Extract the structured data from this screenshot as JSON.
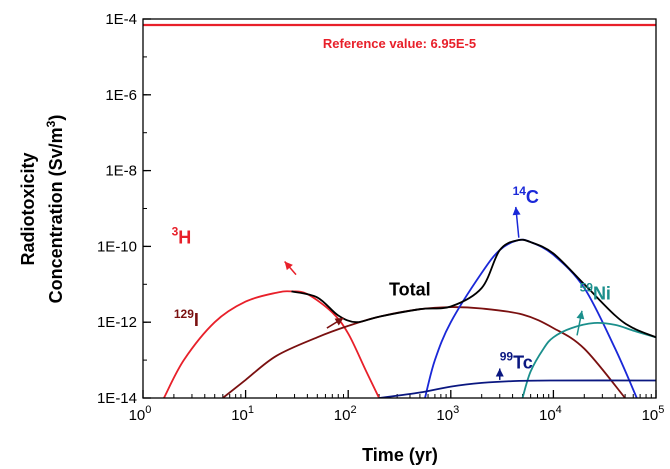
{
  "chart_data": {
    "type": "line",
    "title": "",
    "xlabel": "Time (yr)",
    "ylabel_line1": "Radiotoxicity",
    "ylabel_line2": "Concentration (Sv/m",
    "ylabel_sup": "3",
    "ylabel_close": ")",
    "xscale": "log",
    "yscale": "log",
    "xlim": [
      1,
      100000
    ],
    "ylim": [
      1e-14,
      0.0001
    ],
    "grid": false,
    "x_ticks": [
      {
        "v": 1,
        "base": "10",
        "exp": "0"
      },
      {
        "v": 10,
        "base": "10",
        "exp": "1"
      },
      {
        "v": 100,
        "base": "10",
        "exp": "2"
      },
      {
        "v": 1000,
        "base": "10",
        "exp": "3"
      },
      {
        "v": 10000,
        "base": "10",
        "exp": "4"
      },
      {
        "v": 100000,
        "base": "10",
        "exp": "5"
      }
    ],
    "y_ticks": [
      {
        "v": 1e-14,
        "label": "1E-14"
      },
      {
        "v": 1e-12,
        "label": "1E-12"
      },
      {
        "v": 1e-10,
        "label": "1E-10"
      },
      {
        "v": 1e-08,
        "label": "1E-8"
      },
      {
        "v": 1e-06,
        "label": "1E-6"
      },
      {
        "v": 0.0001,
        "label": "1E-4"
      }
    ],
    "reference": {
      "value": 6.95e-05,
      "text": "Reference value: 6.95E-5",
      "color": "#e8202a"
    },
    "series": [
      {
        "name": "3H",
        "color": "#e8202a",
        "points": [
          [
            1.6,
            1e-14
          ],
          [
            2.5,
            1e-13
          ],
          [
            5,
            1e-12
          ],
          [
            10,
            3.5e-12
          ],
          [
            20,
            6e-12
          ],
          [
            28,
            6.5e-12
          ],
          [
            40,
            5.5e-12
          ],
          [
            70,
            1.8e-12
          ],
          [
            100,
            5e-13
          ],
          [
            150,
            5e-14
          ],
          [
            200,
            1e-14
          ]
        ]
      },
      {
        "name": "129I",
        "color": "#7a1010",
        "points": [
          [
            6,
            1e-14
          ],
          [
            10,
            3e-14
          ],
          [
            20,
            1.3e-13
          ],
          [
            50,
            4e-13
          ],
          [
            100,
            8e-13
          ],
          [
            200,
            1.4e-12
          ],
          [
            500,
            2.2e-12
          ],
          [
            1000,
            2.5e-12
          ],
          [
            2000,
            2.3e-12
          ],
          [
            5000,
            1.6e-12
          ],
          [
            10000,
            7e-13
          ],
          [
            20000,
            2e-13
          ],
          [
            50000,
            1e-14
          ]
        ]
      },
      {
        "name": "14C",
        "color": "#1a28d8",
        "points": [
          [
            560,
            1e-14
          ],
          [
            700,
            1e-13
          ],
          [
            1000,
            1e-12
          ],
          [
            2000,
            2e-11
          ],
          [
            3000,
            8e-11
          ],
          [
            4500,
            1.45e-10
          ],
          [
            6000,
            1.3e-10
          ],
          [
            10000,
            6e-11
          ],
          [
            20000,
            8e-12
          ],
          [
            40000,
            2e-13
          ],
          [
            65000,
            1e-14
          ]
        ]
      },
      {
        "name": "59Ni",
        "color": "#1b8f8c",
        "points": [
          [
            5000,
            1e-14
          ],
          [
            6000,
            5e-14
          ],
          [
            8000,
            2e-13
          ],
          [
            10000,
            4e-13
          ],
          [
            15000,
            7e-13
          ],
          [
            25000,
            9.5e-13
          ],
          [
            40000,
            8.5e-13
          ],
          [
            60000,
            6e-13
          ],
          [
            100000,
            4e-13
          ]
        ]
      },
      {
        "name": "99Tc",
        "color": "#0a1780",
        "points": [
          [
            200,
            1e-14
          ],
          [
            500,
            1.4e-14
          ],
          [
            1000,
            2e-14
          ],
          [
            2000,
            2.5e-14
          ],
          [
            4000,
            2.8e-14
          ],
          [
            10000,
            2.9e-14
          ],
          [
            100000,
            2.9e-14
          ]
        ]
      },
      {
        "name": "Total",
        "color": "#000000",
        "points": [
          [
            28,
            6.5e-12
          ],
          [
            50,
            4.5e-12
          ],
          [
            80,
            1.5e-12
          ],
          [
            120,
            1e-12
          ],
          [
            200,
            1.4e-12
          ],
          [
            500,
            2.2e-12
          ],
          [
            1000,
            2.6e-12
          ],
          [
            2000,
            8e-12
          ],
          [
            3000,
            8e-11
          ],
          [
            4500,
            1.45e-10
          ],
          [
            6000,
            1.3e-10
          ],
          [
            10000,
            6.5e-11
          ],
          [
            20000,
            1e-11
          ],
          [
            40000,
            1.5e-12
          ],
          [
            60000,
            7e-13
          ],
          [
            100000,
            4e-13
          ]
        ]
      }
    ],
    "annotations": [
      {
        "name": "h3",
        "text": "H",
        "sup": "3",
        "color": "#e8202a",
        "x": 1.9,
        "y": 1.2e-10,
        "arrow_from": [
          31,
          1.8e-11
        ],
        "arrow_to": [
          24,
          4e-11
        ]
      },
      {
        "name": "i129",
        "text": "I",
        "sup": "129",
        "color": "#7a1010",
        "x": 2,
        "y": 8e-13,
        "arrow_from": [
          62,
          7e-13
        ],
        "arrow_to": [
          90,
          1.3e-12
        ]
      },
      {
        "name": "c14",
        "text": "C",
        "sup": "14",
        "color": "#1a28d8",
        "x": 4000,
        "y": 1.4e-09,
        "arrow_from": [
          4600,
          1.7e-10
        ],
        "arrow_to": [
          4300,
          1.1e-09
        ]
      },
      {
        "name": "ni59",
        "text": "Ni",
        "sup": "59",
        "color": "#1b8f8c",
        "x": 18000,
        "y": 4e-12,
        "arrow_from": [
          17000,
          4.5e-13
        ],
        "arrow_to": [
          19000,
          2e-12
        ]
      },
      {
        "name": "tc99",
        "text": "Tc",
        "sup": "99",
        "color": "#0a1780",
        "x": 3000,
        "y": 6e-14,
        "arrow_from": [
          3000,
          3e-14
        ],
        "arrow_to": [
          3000,
          6e-14
        ]
      },
      {
        "name": "total",
        "text": "Total",
        "sup": "",
        "color": "#000000",
        "x": 250,
        "y": 5e-12
      }
    ]
  }
}
